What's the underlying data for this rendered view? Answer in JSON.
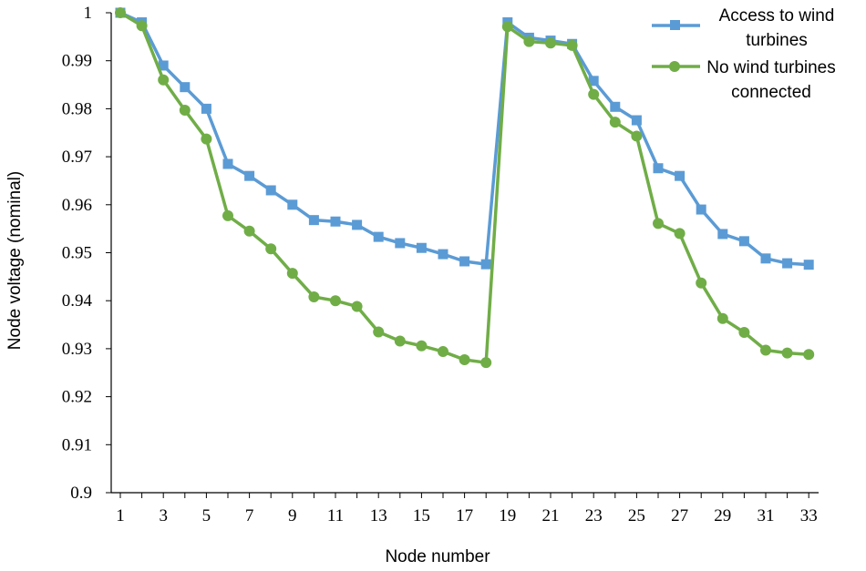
{
  "chart_data": {
    "type": "line",
    "xlabel": "Node number",
    "ylabel": "Node voltage (nominal)",
    "x": [
      1,
      2,
      3,
      4,
      5,
      6,
      7,
      8,
      9,
      10,
      11,
      12,
      13,
      14,
      15,
      16,
      17,
      18,
      19,
      20,
      21,
      22,
      23,
      24,
      25,
      26,
      27,
      28,
      29,
      30,
      31,
      32,
      33
    ],
    "x_tick_labels": [
      "1",
      "3",
      "5",
      "7",
      "9",
      "11",
      "13",
      "15",
      "17",
      "19",
      "21",
      "23",
      "25",
      "27",
      "29",
      "31",
      "33"
    ],
    "y_tick_labels": [
      "0.9",
      "0.91",
      "0.92",
      "0.93",
      "0.94",
      "0.95",
      "0.96",
      "0.97",
      "0.98",
      "0.99",
      "1"
    ],
    "ylim": [
      0.9,
      1.0
    ],
    "grid": false,
    "legend_position": "top-right",
    "series": [
      {
        "name": "Access to wind turbines",
        "legend_lines": [
          "Access to wind",
          "turbines"
        ],
        "marker": "square",
        "color": "#5b9bd5",
        "values": [
          1.0,
          0.998,
          0.989,
          0.9845,
          0.98,
          0.9685,
          0.966,
          0.963,
          0.96,
          0.9568,
          0.9565,
          0.9558,
          0.9533,
          0.952,
          0.951,
          0.9497,
          0.9482,
          0.9476,
          0.998,
          0.9948,
          0.9942,
          0.9935,
          0.9858,
          0.9804,
          0.9776,
          0.9676,
          0.966,
          0.959,
          0.9539,
          0.9524,
          0.9488,
          0.9478,
          0.9475
        ]
      },
      {
        "name": "No wind turbines connected",
        "legend_lines": [
          "No wind turbines",
          "connected"
        ],
        "marker": "circle",
        "color": "#70ad47",
        "values": [
          1.0,
          0.9973,
          0.986,
          0.9797,
          0.9737,
          0.9577,
          0.9545,
          0.9508,
          0.9457,
          0.9408,
          0.94,
          0.9388,
          0.9335,
          0.9316,
          0.9306,
          0.9294,
          0.9277,
          0.9271,
          0.9971,
          0.994,
          0.9937,
          0.9932,
          0.983,
          0.9772,
          0.9743,
          0.9561,
          0.954,
          0.9437,
          0.9363,
          0.9334,
          0.9297,
          0.9291,
          0.9288
        ]
      }
    ]
  }
}
